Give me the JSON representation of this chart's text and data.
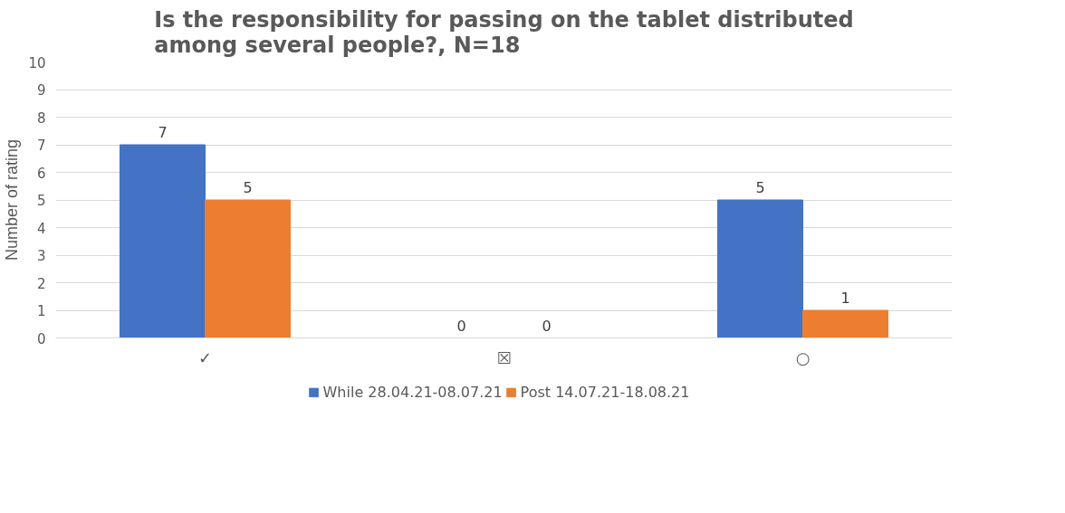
{
  "chart_data": {
    "type": "bar",
    "title": "Is the responsibility for passing on the tablet distributed among several people?, N=18",
    "ylabel": "Number of rating",
    "categories": [
      "✓",
      "☒",
      "○"
    ],
    "series": [
      {
        "name": "While 28.04.21-08.07.21",
        "color": "#4472c4",
        "values": [
          7,
          0,
          5
        ]
      },
      {
        "name": "Post 14.07.21-18.08.21",
        "color": "#ed7d31",
        "values": [
          5,
          0,
          1
        ]
      }
    ],
    "ylim": [
      0,
      10
    ],
    "yticks": [
      0,
      1,
      2,
      3,
      4,
      5,
      6,
      7,
      8,
      9,
      10
    ],
    "grid": "y",
    "legend": "bottom",
    "data_labels": true
  }
}
